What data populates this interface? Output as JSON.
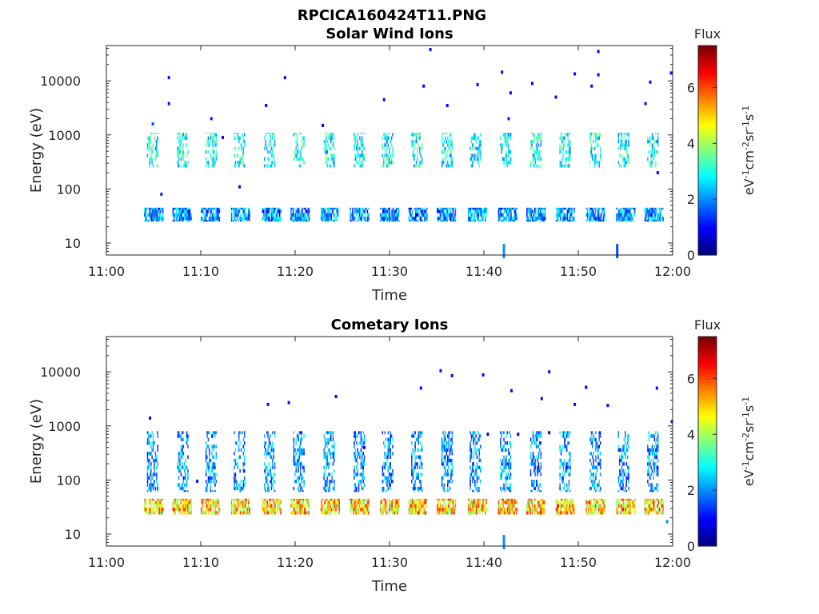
{
  "figure": {
    "title": "RPCICA160424T11.PNG"
  },
  "colorbar": {
    "title": "Flux",
    "label": "eV-1cm-2sr-1s-1",
    "ticks": [
      0,
      2,
      4,
      6
    ],
    "range": [
      0,
      7.5
    ],
    "colormap": "jet"
  },
  "chart_data": [
    {
      "type": "heatmap",
      "title": "Solar Wind Ions",
      "xlabel": "Time",
      "ylabel": "Energy (eV)",
      "yscale": "log",
      "xlim": [
        "11:00",
        "12:00"
      ],
      "xticks": [
        "11:00",
        "11:10",
        "11:20",
        "11:30",
        "11:40",
        "11:50",
        "12:00"
      ],
      "ylim": [
        6,
        45000
      ],
      "yticks": [
        10,
        100,
        1000,
        10000
      ],
      "grid": false,
      "bands": [
        {
          "label": "low-energy band",
          "energy_range": [
            25,
            45
          ],
          "flux_range": [
            0.8,
            3.2
          ],
          "scan_start_minutes": [
            4.0,
            7.0,
            10.0,
            13.2,
            16.5,
            19.5,
            22.7,
            25.8,
            29.0,
            32.0,
            35.0,
            38.3,
            41.5,
            44.5,
            47.6,
            50.8,
            54.0,
            57.0
          ],
          "scan_width_minutes": 2.0
        },
        {
          "label": "solar wind band",
          "energy_range": [
            250,
            1100
          ],
          "flux_range": [
            1.8,
            3.8
          ],
          "scan_start_minutes": [
            4.3,
            7.5,
            10.5,
            13.5,
            16.7,
            19.8,
            23.0,
            26.2,
            29.2,
            32.3,
            35.5,
            38.5,
            41.7,
            44.9,
            48.0,
            51.2,
            54.2,
            57.3
          ],
          "scan_width_minutes": 1.2
        }
      ],
      "sparse_points": [
        {
          "time_min": 4.8,
          "energy": 1600,
          "flux": 1.5
        },
        {
          "time_min": 5.7,
          "energy": 80,
          "flux": 1.2
        },
        {
          "time_min": 6.5,
          "energy": 11500,
          "flux": 1.0
        },
        {
          "time_min": 6.5,
          "energy": 3800,
          "flux": 1.0
        },
        {
          "time_min": 11.0,
          "energy": 2000,
          "flux": 1.2
        },
        {
          "time_min": 12.2,
          "energy": 900,
          "flux": 1.0
        },
        {
          "time_min": 14.0,
          "energy": 110,
          "flux": 1.0
        },
        {
          "time_min": 16.8,
          "energy": 3500,
          "flux": 1.0
        },
        {
          "time_min": 18.8,
          "energy": 11500,
          "flux": 1.0
        },
        {
          "time_min": 22.8,
          "energy": 1500,
          "flux": 1.0
        },
        {
          "time_min": 29.3,
          "energy": 4500,
          "flux": 1.0
        },
        {
          "time_min": 33.5,
          "energy": 8000,
          "flux": 1.0
        },
        {
          "time_min": 34.2,
          "energy": 38000,
          "flux": 1.0
        },
        {
          "time_min": 36.0,
          "energy": 3500,
          "flux": 1.0
        },
        {
          "time_min": 39.2,
          "energy": 8500,
          "flux": 1.0
        },
        {
          "time_min": 41.8,
          "energy": 14500,
          "flux": 1.0
        },
        {
          "time_min": 42.0,
          "energy": 9,
          "flux": 2.0
        },
        {
          "time_min": 42.5,
          "energy": 2000,
          "flux": 1.2
        },
        {
          "time_min": 42.7,
          "energy": 6000,
          "flux": 1.0
        },
        {
          "time_min": 45.0,
          "energy": 9000,
          "flux": 1.0
        },
        {
          "time_min": 47.5,
          "energy": 5000,
          "flux": 1.0
        },
        {
          "time_min": 49.5,
          "energy": 13500,
          "flux": 1.0
        },
        {
          "time_min": 51.3,
          "energy": 8000,
          "flux": 1.0
        },
        {
          "time_min": 52.0,
          "energy": 35000,
          "flux": 1.0
        },
        {
          "time_min": 52.0,
          "energy": 13000,
          "flux": 1.0
        },
        {
          "time_min": 54.0,
          "energy": 9,
          "flux": 1.5
        },
        {
          "time_min": 57.0,
          "energy": 3800,
          "flux": 1.0
        },
        {
          "time_min": 57.5,
          "energy": 9500,
          "flux": 1.0
        },
        {
          "time_min": 58.3,
          "energy": 200,
          "flux": 1.0
        },
        {
          "time_min": 59.7,
          "energy": 14000,
          "flux": 1.0
        }
      ]
    },
    {
      "type": "heatmap",
      "title": "Cometary Ions",
      "xlabel": "Time",
      "ylabel": "Energy (eV)",
      "yscale": "log",
      "xlim": [
        "11:00",
        "12:00"
      ],
      "xticks": [
        "11:00",
        "11:10",
        "11:20",
        "11:30",
        "11:40",
        "11:50",
        "12:00"
      ],
      "ylim": [
        6,
        45000
      ],
      "yticks": [
        10,
        100,
        1000,
        10000
      ],
      "grid": false,
      "bands": [
        {
          "label": "cometary ion band",
          "energy_range": [
            23,
            45
          ],
          "flux_range": [
            3.5,
            6.5
          ],
          "scan_start_minutes": [
            4.0,
            7.0,
            10.0,
            13.2,
            16.5,
            19.5,
            22.7,
            25.8,
            29.0,
            32.0,
            35.0,
            38.3,
            41.5,
            44.5,
            47.6,
            50.8,
            54.0,
            57.0
          ],
          "scan_width_minutes": 2.0
        },
        {
          "label": "higher-energy tails",
          "energy_range": [
            60,
            800
          ],
          "flux_range": [
            1.0,
            3.0
          ],
          "scan_start_minutes": [
            4.3,
            7.5,
            10.5,
            13.5,
            16.7,
            19.8,
            23.0,
            26.2,
            29.2,
            32.3,
            35.5,
            38.5,
            41.7,
            44.9,
            48.0,
            51.2,
            54.2,
            57.3
          ],
          "scan_width_minutes": 1.2
        }
      ],
      "sparse_points": [
        {
          "time_min": 4.5,
          "energy": 1400,
          "flux": 1.0
        },
        {
          "time_min": 9.5,
          "energy": 95,
          "flux": 1.0
        },
        {
          "time_min": 17.0,
          "energy": 2500,
          "flux": 1.0
        },
        {
          "time_min": 19.2,
          "energy": 2700,
          "flux": 1.0
        },
        {
          "time_min": 24.2,
          "energy": 3500,
          "flux": 1.0
        },
        {
          "time_min": 27.2,
          "energy": 400,
          "flux": 0.6
        },
        {
          "time_min": 33.2,
          "energy": 5000,
          "flux": 1.0
        },
        {
          "time_min": 35.3,
          "energy": 10500,
          "flux": 1.0
        },
        {
          "time_min": 36.5,
          "energy": 8500,
          "flux": 1.0
        },
        {
          "time_min": 39.8,
          "energy": 8800,
          "flux": 1.0
        },
        {
          "time_min": 40.3,
          "energy": 700,
          "flux": 0.5
        },
        {
          "time_min": 42.0,
          "energy": 9,
          "flux": 2.0
        },
        {
          "time_min": 42.8,
          "energy": 4500,
          "flux": 1.0
        },
        {
          "time_min": 43.5,
          "energy": 700,
          "flux": 0.5
        },
        {
          "time_min": 46.0,
          "energy": 3200,
          "flux": 1.0
        },
        {
          "time_min": 46.8,
          "energy": 10000,
          "flux": 1.0
        },
        {
          "time_min": 46.8,
          "energy": 750,
          "flux": 0.5
        },
        {
          "time_min": 49.5,
          "energy": 2500,
          "flux": 1.0
        },
        {
          "time_min": 50.7,
          "energy": 5200,
          "flux": 1.0
        },
        {
          "time_min": 53.0,
          "energy": 2400,
          "flux": 1.0
        },
        {
          "time_min": 58.2,
          "energy": 5000,
          "flux": 1.0
        },
        {
          "time_min": 59.8,
          "energy": 1200,
          "flux": 1.0
        },
        {
          "time_min": 59.3,
          "energy": 17,
          "flux": 2.0
        }
      ]
    }
  ]
}
